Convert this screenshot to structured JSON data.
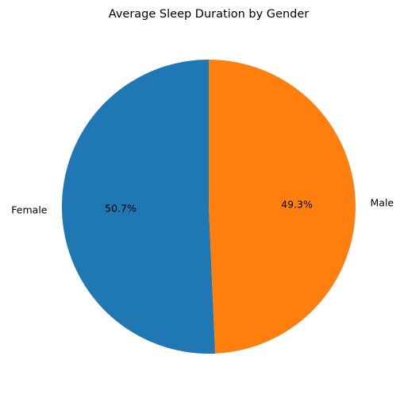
{
  "chart_data": {
    "type": "pie",
    "title": "Average Sleep Duration by Gender",
    "slices": [
      {
        "label": "Female",
        "value": 50.7,
        "pct_text": "50.7%",
        "color": "#1f77b4"
      },
      {
        "label": "Male",
        "value": 49.3,
        "pct_text": "49.3%",
        "color": "#ff7f0e"
      }
    ],
    "start_angle_deg": 90,
    "direction": "counterclockwise"
  }
}
